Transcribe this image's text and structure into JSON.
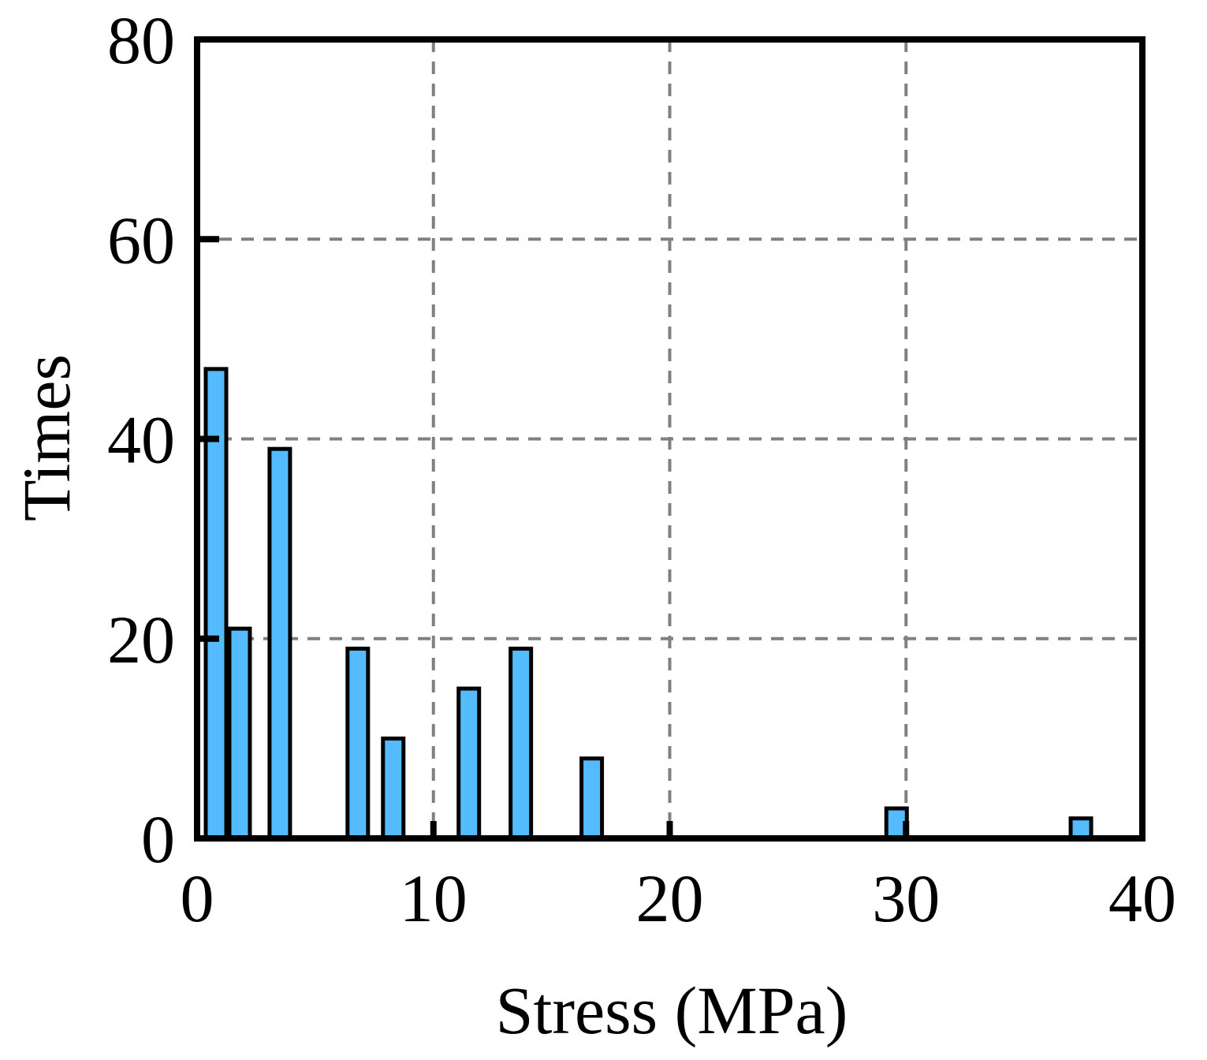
{
  "chart_data": {
    "type": "bar",
    "title": "",
    "xlabel": "Stress (MPa)",
    "ylabel": "Times",
    "xlim": [
      0,
      40
    ],
    "ylim": [
      0,
      80
    ],
    "x_ticks": [
      "0",
      "10",
      "20",
      "30",
      "40"
    ],
    "y_ticks": [
      "0",
      "20",
      "40",
      "60",
      "80"
    ],
    "grid": true,
    "legend": "none",
    "bar_color": "#55bbff",
    "series": [
      {
        "x": [
          0.8,
          1.8,
          3.5,
          6.8,
          8.3,
          11.5,
          13.7,
          16.7,
          29.6,
          37.4
        ],
        "values": [
          47,
          21,
          39,
          19,
          10,
          15,
          19,
          8,
          3,
          2
        ]
      }
    ]
  }
}
